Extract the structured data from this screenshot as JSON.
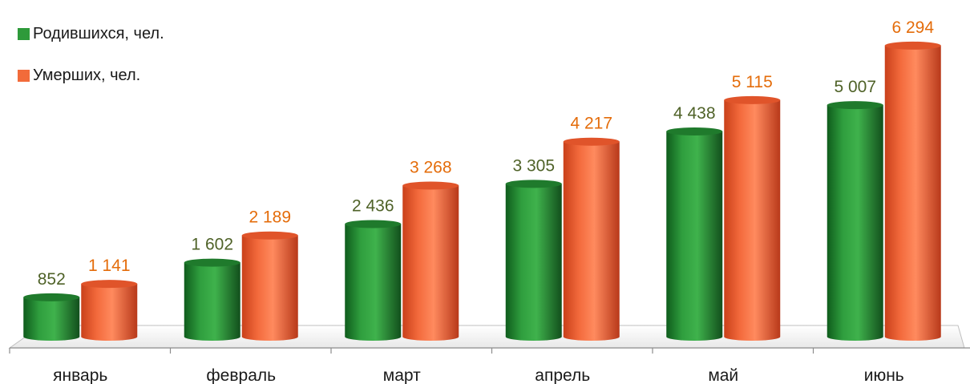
{
  "chart_data": {
    "type": "bar",
    "categories": [
      "январь",
      "февраль",
      "март",
      "апрель",
      "май",
      "июнь"
    ],
    "series": [
      {
        "name": "Родившихся, чел.",
        "values": [
          852,
          1602,
          2436,
          3305,
          4438,
          5007
        ],
        "labels": [
          "852",
          "1 602",
          "2 436",
          "3 305",
          "4 438",
          "5 007"
        ],
        "color": "#2e9a3a",
        "label_color": "#4f6228"
      },
      {
        "name": "Умерших, чел.",
        "values": [
          1141,
          2189,
          3268,
          4217,
          5115,
          6294
        ],
        "labels": [
          "1 141",
          "2 189",
          "3 268",
          "4 217",
          "5 115",
          "6 294"
        ],
        "color": "#f26b3a",
        "label_color": "#e46c0a"
      }
    ],
    "ylim": [
      0,
      6500
    ],
    "legend": "top-left",
    "grid": false,
    "style": "3d-cylinder"
  }
}
